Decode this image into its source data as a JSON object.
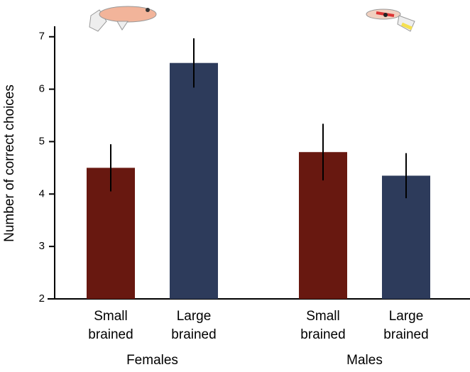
{
  "chart_data": {
    "type": "bar",
    "y_label": "Number of correct choices",
    "groups": [
      "Females",
      "Males"
    ],
    "series": [
      {
        "name": "Small brained",
        "color": "#681810",
        "values": [
          4.5,
          4.8
        ],
        "errors": [
          0.45,
          0.54
        ]
      },
      {
        "name": "Large brained",
        "color": "#2d3b5b",
        "values": [
          6.5,
          4.35
        ],
        "errors": [
          0.47,
          0.43
        ]
      }
    ],
    "ylim": [
      2,
      7.2
    ],
    "yticks": [
      2,
      3,
      4,
      5,
      6,
      7
    ]
  }
}
